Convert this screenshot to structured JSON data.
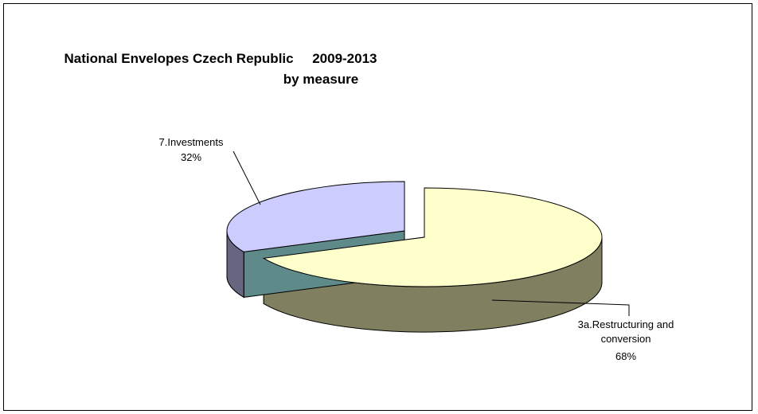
{
  "chart_data": {
    "type": "pie",
    "title_lines": [
      "National Envelopes Czech Republic     2009-2013",
      "by measure"
    ],
    "slices": [
      {
        "category": "3a.Restructuring and conversion",
        "label_lines": [
          "3a.Restructuring and",
          "conversion"
        ],
        "value": 68,
        "value_label": "68%",
        "color_top": "#ffffcc",
        "color_side": "#808060"
      },
      {
        "category": "7.Investments",
        "label_lines": [
          "7.Investments"
        ],
        "value": 32,
        "value_label": "32%",
        "color_top": "#ccccff",
        "color_side": "#666680"
      }
    ],
    "style": "3d-exploded",
    "legend": "none"
  }
}
